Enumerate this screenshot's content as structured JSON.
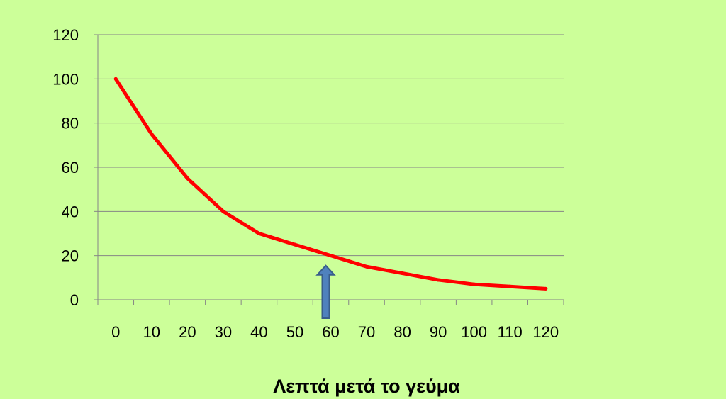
{
  "chart_data": {
    "type": "line",
    "title": "",
    "xlabel": "Λεπτά μετά το γεύμα",
    "ylabel": "",
    "categories": [
      "0",
      "10",
      "20",
      "30",
      "40",
      "50",
      "60",
      "70",
      "80",
      "90",
      "100",
      "110",
      "120"
    ],
    "series": [
      {
        "values": [
          100,
          75,
          55,
          40,
          30,
          25,
          20,
          15,
          12,
          9,
          7,
          6,
          5
        ]
      }
    ],
    "ylim": [
      0,
      120
    ],
    "yticks": [
      0,
      20,
      40,
      60,
      80,
      100,
      120
    ],
    "grid": true,
    "colors": {
      "line": "#ff0000",
      "grid": "#868686",
      "axis": "#868686",
      "arrow_fill": "#4f81bd",
      "arrow_stroke": "#385d8a",
      "background": "#ccff99"
    },
    "annotation": {
      "type": "arrow",
      "category": "60",
      "direction": "up"
    }
  }
}
